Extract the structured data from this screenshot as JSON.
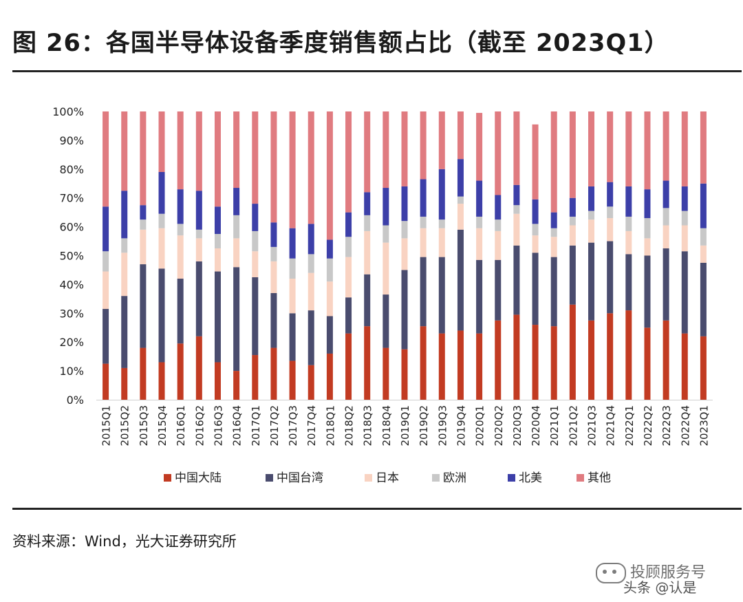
{
  "title": "图 26：各国半导体设备季度销售额占比（截至 2023Q1）",
  "source": "资料来源：Wind，光大证券研究所",
  "watermark": {
    "line1": "投顾服务号",
    "line2": "头条 @认是"
  },
  "chart_data": {
    "type": "bar",
    "stacked": true,
    "title": "",
    "xlabel": "",
    "ylabel": "",
    "ylim": [
      0,
      100
    ],
    "y_ticks": [
      "0%",
      "10%",
      "20%",
      "30%",
      "40%",
      "50%",
      "60%",
      "70%",
      "80%",
      "90%",
      "100%"
    ],
    "legend_position": "bottom",
    "categories": [
      "2015Q1",
      "2015Q2",
      "2015Q3",
      "2015Q4",
      "2016Q1",
      "2016Q2",
      "2016Q3",
      "2016Q4",
      "2017Q1",
      "2017Q2",
      "2017Q3",
      "2017Q4",
      "2018Q1",
      "2018Q2",
      "2018Q3",
      "2018Q4",
      "2019Q1",
      "2019Q2",
      "2019Q3",
      "2019Q4",
      "2020Q1",
      "2020Q2",
      "2020Q3",
      "2020Q4",
      "2021Q1",
      "2021Q2",
      "2021Q3",
      "2021Q4",
      "2022Q1",
      "2022Q2",
      "2022Q3",
      "2022Q4",
      "2023Q1"
    ],
    "series": [
      {
        "name": "中国大陆",
        "color": "#c23b22",
        "values": [
          12.5,
          11,
          18,
          13,
          19.5,
          22,
          13,
          10,
          15.5,
          18,
          13.5,
          12,
          16,
          23,
          25.5,
          18,
          17.5,
          25.5,
          23,
          24,
          23,
          27.5,
          29.5,
          26,
          25.5,
          33,
          27.5,
          30,
          31,
          25,
          27.5,
          23,
          22
        ]
      },
      {
        "name": "中国台湾",
        "color": "#4a4c6e",
        "values": [
          19,
          25,
          29,
          32.5,
          22.5,
          26,
          31.5,
          36,
          27,
          19,
          16.5,
          19,
          13,
          12.5,
          18,
          18.5,
          27.5,
          24,
          26.5,
          35,
          25.5,
          21,
          24,
          25,
          24,
          20.5,
          27,
          25,
          19.5,
          25,
          25,
          28.5,
          25.5
        ]
      },
      {
        "name": "日本",
        "color": "#f9d3c2",
        "values": [
          13,
          15,
          12,
          14,
          15,
          8,
          8,
          10,
          9,
          11,
          12,
          13,
          12,
          14,
          15,
          18,
          11,
          10,
          10,
          9,
          11,
          10,
          11,
          6,
          7,
          7,
          8,
          8,
          8,
          6,
          8,
          9,
          6
        ]
      },
      {
        "name": "欧洲",
        "color": "#c8c8c8",
        "values": [
          7,
          5,
          3.5,
          5,
          4,
          3,
          5,
          8,
          7,
          5,
          7,
          6.5,
          8,
          7,
          5.5,
          6,
          6,
          4,
          3,
          2.5,
          4,
          4,
          3,
          4,
          3,
          3,
          3,
          4,
          5,
          7,
          6,
          5,
          6
        ]
      },
      {
        "name": "北美",
        "color": "#3c3fa8",
        "values": [
          15.5,
          16.5,
          5,
          14.5,
          12,
          13.5,
          9.5,
          9.5,
          9.5,
          8.5,
          10.5,
          10.5,
          6.5,
          8.5,
          8,
          13,
          12,
          13,
          17.5,
          13,
          12.5,
          8.5,
          7,
          8.5,
          5.5,
          6.5,
          8.5,
          8.5,
          10.5,
          10,
          9.5,
          8.5,
          15.5
        ]
      },
      {
        "name": "其他",
        "color": "#e07b80",
        "values": [
          33,
          27.5,
          32.5,
          21,
          27,
          27.5,
          33,
          26.5,
          32,
          38.5,
          40.5,
          39,
          44.5,
          35,
          28,
          26.5,
          26,
          23.5,
          20,
          16.5,
          23.5,
          29,
          25.5,
          26,
          35,
          30,
          26,
          24.5,
          26,
          27,
          24,
          26,
          25
        ]
      }
    ]
  }
}
